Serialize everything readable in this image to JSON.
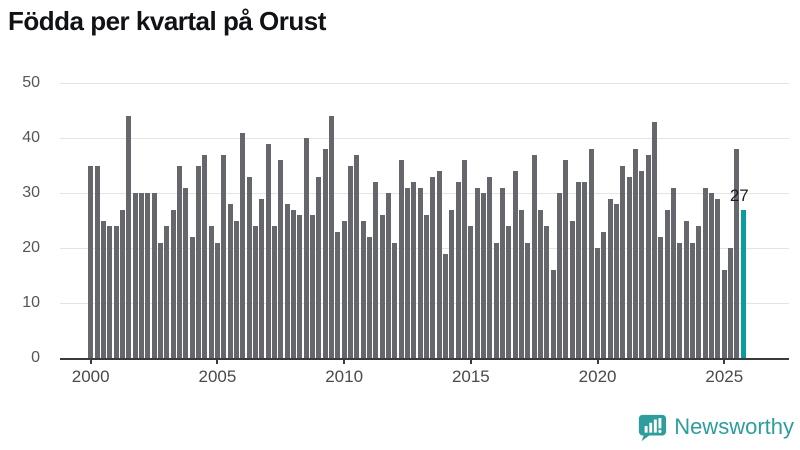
{
  "title": "Födda per kvartal på Orust",
  "chart_data": {
    "type": "bar",
    "title": "Födda per kvartal på Orust",
    "xlabel": "",
    "ylabel": "",
    "x_start": "2000-Q1",
    "x_end": "2025-Q4",
    "x_tick_labels": [
      "2000",
      "2005",
      "2010",
      "2015",
      "2020",
      "2025"
    ],
    "y_tick_labels": [
      "0",
      "10",
      "20",
      "30",
      "40",
      "50"
    ],
    "ylim": [
      0,
      50
    ],
    "grid": "horizontal",
    "values": [
      35,
      35,
      25,
      24,
      24,
      27,
      44,
      30,
      30,
      30,
      30,
      21,
      24,
      27,
      35,
      31,
      22,
      35,
      37,
      24,
      21,
      37,
      28,
      25,
      41,
      33,
      24,
      29,
      39,
      24,
      36,
      28,
      27,
      26,
      40,
      26,
      33,
      38,
      44,
      23,
      25,
      35,
      37,
      25,
      22,
      32,
      26,
      30,
      21,
      36,
      31,
      32,
      31,
      26,
      33,
      34,
      19,
      27,
      32,
      36,
      24,
      31,
      30,
      33,
      21,
      31,
      24,
      34,
      27,
      21,
      37,
      27,
      24,
      16,
      30,
      36,
      25,
      32,
      32,
      38,
      20,
      23,
      29,
      28,
      35,
      33,
      38,
      34,
      37,
      43,
      22,
      27,
      31,
      21,
      25,
      21,
      24,
      31,
      30,
      29,
      16,
      20,
      38,
      27
    ],
    "highlight_index": 103,
    "highlight_label": "27"
  },
  "colors": {
    "bar": "#66676c",
    "highlight_bar": "#0b9d9d",
    "gridline": "#e4e4e6",
    "axis": "#3a3b40",
    "title_text": "#111215",
    "tick_text": "#55565a",
    "annotation_text": "#1d1e21",
    "brand_teal": "#2e9d9d"
  },
  "branding": {
    "logo_text": "Newsworthy",
    "logo_icon": "bar-chart-speech-bubble"
  }
}
